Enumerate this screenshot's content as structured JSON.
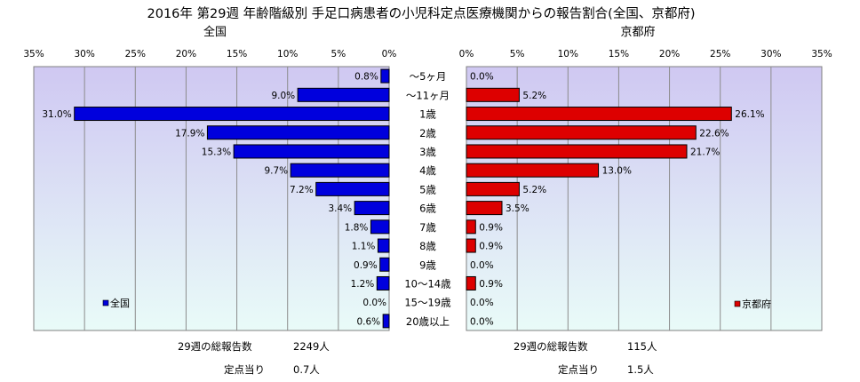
{
  "chart_data": {
    "type": "bar",
    "title": "2016年 第29週 年齢階級別 手足口病患者の小児科定点医療機関からの報告割合(全国、京都府)",
    "categories": [
      "～5ヶ月",
      "～11ヶ月",
      "1歳",
      "2歳",
      "3歳",
      "4歳",
      "5歳",
      "6歳",
      "7歳",
      "8歳",
      "9歳",
      "10～14歳",
      "15～19歳",
      "20歳以上"
    ],
    "left": {
      "subtitle": "全国",
      "legend": "全国",
      "color": "#0000dd",
      "xlim": [
        0,
        35
      ],
      "ticks": [
        "35%",
        "30%",
        "25%",
        "20%",
        "15%",
        "10%",
        "5%",
        "0%"
      ],
      "values": [
        0.8,
        9.0,
        31.0,
        17.9,
        15.3,
        9.7,
        7.2,
        3.4,
        1.8,
        1.1,
        0.9,
        1.2,
        0.0,
        0.6
      ],
      "labels": [
        "0.8%",
        "9.0%",
        "31.0%",
        "17.9%",
        "15.3%",
        "9.7%",
        "7.2%",
        "3.4%",
        "1.8%",
        "1.1%",
        "0.9%",
        "1.2%",
        "0.0%",
        "0.6%"
      ]
    },
    "right": {
      "subtitle": "京都府",
      "legend": "京都府",
      "color": "#dd0000",
      "xlim": [
        0,
        35
      ],
      "ticks": [
        "0%",
        "5%",
        "10%",
        "15%",
        "20%",
        "25%",
        "30%",
        "35%"
      ],
      "values": [
        0.0,
        5.2,
        26.1,
        22.6,
        21.7,
        13.0,
        5.2,
        3.5,
        0.9,
        0.9,
        0.0,
        0.9,
        0.0,
        0.0
      ],
      "labels": [
        "0.0%",
        "5.2%",
        "26.1%",
        "22.6%",
        "21.7%",
        "13.0%",
        "5.2%",
        "3.5%",
        "0.9%",
        "0.9%",
        "0.0%",
        "0.9%",
        "0.0%",
        "0.0%"
      ]
    }
  },
  "footer": {
    "left": {
      "total_label": "29週の総報告数",
      "total_value": "2249人",
      "per_label": "定点当り",
      "per_value": "0.7人"
    },
    "right": {
      "total_label": "29週の総報告数",
      "total_value": "115人",
      "per_label": "定点当り",
      "per_value": "1.5人"
    }
  }
}
